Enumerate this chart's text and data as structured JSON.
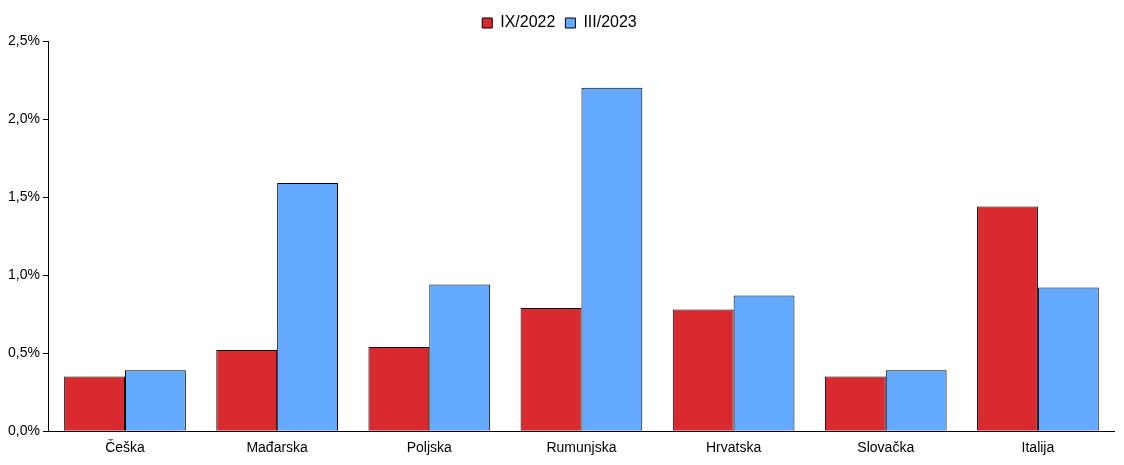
{
  "chart_data": {
    "type": "bar",
    "categories": [
      "Češka",
      "Mađarska",
      "Poljska",
      "Rumunjska",
      "Hrvatska",
      "Slovačka",
      "Italija"
    ],
    "series": [
      {
        "name": "IX/2022",
        "color": "#d92b2f",
        "values": [
          0.35,
          0.52,
          0.54,
          0.79,
          0.78,
          0.35,
          1.44
        ]
      },
      {
        "name": "III/2023",
        "color": "#62a9ff",
        "values": [
          0.39,
          1.59,
          0.94,
          2.2,
          0.87,
          0.39,
          0.92
        ]
      }
    ],
    "ylim": [
      0,
      2.5
    ],
    "yticks": [
      {
        "value": 0,
        "label": "0,0%"
      },
      {
        "value": 0.5,
        "label": "0,5%"
      },
      {
        "value": 1,
        "label": "1,0%"
      },
      {
        "value": 1.5,
        "label": "1,5%"
      },
      {
        "value": 2,
        "label": "2,0%"
      },
      {
        "value": 2.5,
        "label": "2,5%"
      }
    ],
    "grid": false,
    "legend": "top"
  }
}
